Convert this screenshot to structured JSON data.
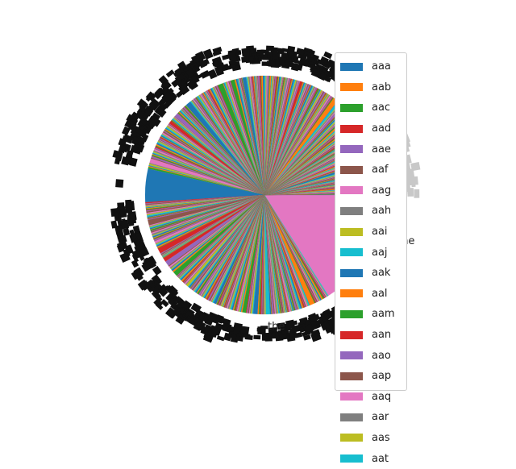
{
  "chart_data": {
    "type": "pie",
    "title": "",
    "start_angle_deg": 0,
    "direction": "counterclockwise",
    "palette": [
      "#1f77b4",
      "#ff7f0e",
      "#2ca02c",
      "#d62728",
      "#9467bd",
      "#8c564b",
      "#e377c2",
      "#7f7f7f",
      "#bcbd22",
      "#17becf"
    ],
    "highlighted_slices": [
      {
        "label": "none",
        "value": 0.16,
        "color": "#e377c2"
      },
      {
        "label": "the",
        "value": 0.045,
        "color": "#1f77b4"
      }
    ],
    "other_slice_count": 600,
    "other_slices_total": 0.795,
    "legend": {
      "placement": "right",
      "entries": [
        "aaa",
        "aab",
        "aac",
        "aad",
        "aae",
        "aaf",
        "aag",
        "aah",
        "aai",
        "aaj",
        "aak",
        "aal",
        "aam",
        "aan",
        "aao",
        "aap",
        "aaq",
        "aar",
        "aas",
        "aat"
      ]
    }
  }
}
